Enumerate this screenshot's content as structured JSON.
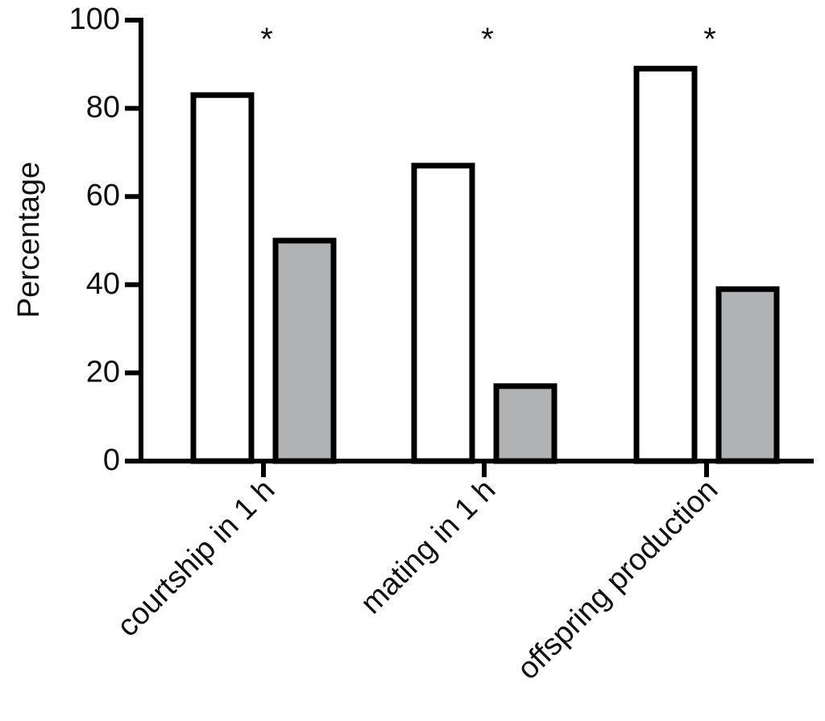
{
  "chart_data": {
    "type": "bar",
    "title": "",
    "xlabel": "",
    "ylabel": "Percentage",
    "ylim": [
      0,
      100
    ],
    "yticks": [
      0,
      20,
      40,
      60,
      80,
      100
    ],
    "categories": [
      "courtship in 1 h",
      "mating in 1 h",
      "offspring production"
    ],
    "series": [
      {
        "values": [
          83,
          67,
          89
        ],
        "color": "#ffffff"
      },
      {
        "values": [
          50,
          17,
          39
        ],
        "color": "#b1b2b4"
      }
    ],
    "annotations": [
      "*",
      "*",
      "*"
    ],
    "legend": "none",
    "grid": false
  }
}
